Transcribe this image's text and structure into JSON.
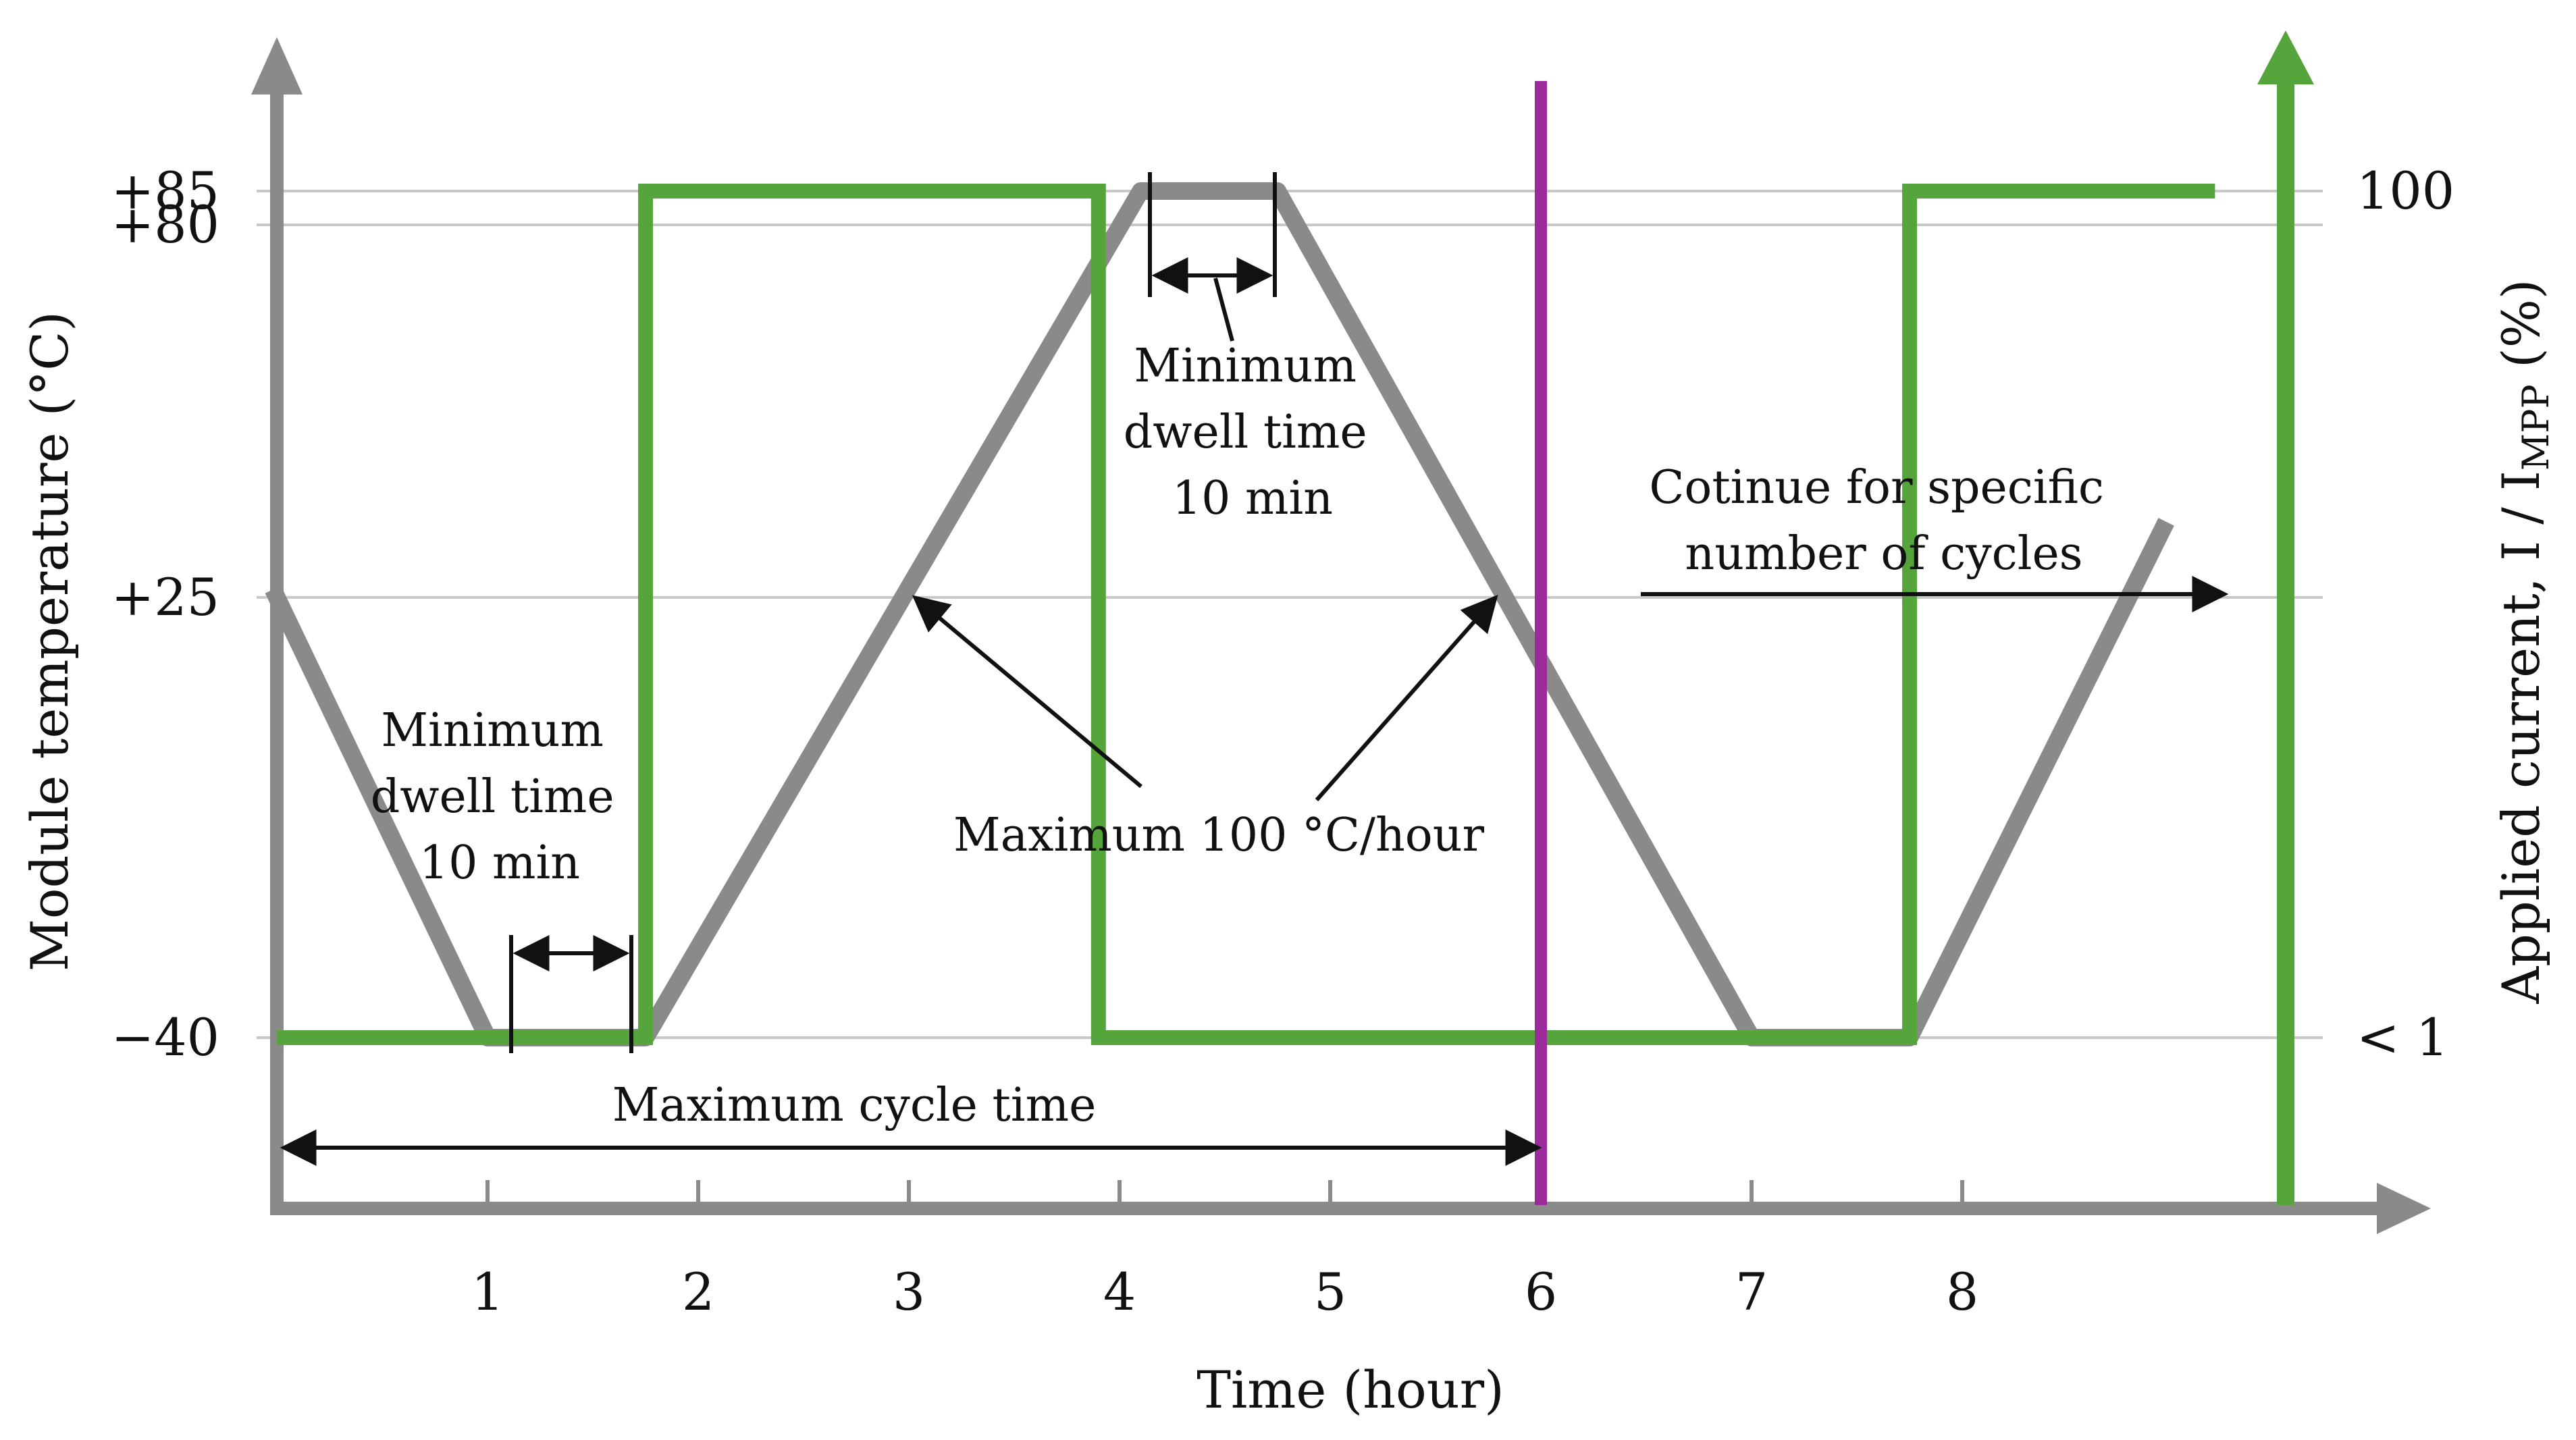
{
  "chart_data": {
    "type": "line",
    "title": "",
    "xlabel": "Time (hour)",
    "ylabel_left": "Module temperature (°C)",
    "ylabel_right": "Applied current, I / I",
    "ylabel_right_subscript": "MPP",
    "ylabel_right_suffix": " (%)",
    "xlim": [
      0,
      10.3
    ],
    "ylim_left": [
      -70,
      110
    ],
    "x_ticks": [
      1,
      2,
      3,
      4,
      5,
      6,
      7,
      8
    ],
    "x_tick_labels": [
      "1",
      "2",
      "3",
      "4",
      "5",
      "6",
      "7",
      "8"
    ],
    "y_left_ticks": [
      -40,
      25,
      80,
      85
    ],
    "y_left_tick_labels": [
      "−40",
      "+25",
      "+80",
      "+85"
    ],
    "y_right_ticks": [
      {
        "value": 100,
        "label": "100",
        "at_temperature": 85
      },
      {
        "value": 1,
        "label": "< 1",
        "at_temperature": -40
      }
    ],
    "grid_horizontal": true,
    "series": [
      {
        "name": "Module temperature",
        "color": "#8a8a8a",
        "axis": "left",
        "x": [
          0,
          1,
          1.75,
          4.1,
          4.75,
          7,
          7.75,
          8.95
        ],
        "y": [
          25,
          -40,
          -40,
          85,
          85,
          -40,
          -40,
          35
        ]
      },
      {
        "name": "Applied current",
        "color": "#55a53c",
        "axis": "right",
        "x": [
          0,
          1.75,
          1.75,
          3.9,
          3.9,
          7.75,
          7.75,
          9.2
        ],
        "y": [
          1,
          1,
          100,
          100,
          1,
          1,
          100,
          100
        ]
      }
    ],
    "vertical_marker": {
      "x": 6,
      "color": "#9b2a9b"
    },
    "annotations": [
      {
        "lines": [
          "Minimum",
          "dwell time",
          "10 min"
        ],
        "target": "dwell at -40 °C, hour 1.1–1.7"
      },
      {
        "lines": [
          "Minimum",
          "dwell time",
          "10 min"
        ],
        "target": "dwell at +85 °C, hour 4.1–4.75"
      },
      {
        "lines": [
          "Maximum 100 °C/hour"
        ],
        "target": "ramp rates"
      },
      {
        "lines": [
          "Maximum cycle time"
        ],
        "target": "hour 0–6"
      },
      {
        "lines": [
          "Cotinue for specific",
          "number of cycles"
        ],
        "target": "continuation arrow"
      }
    ]
  },
  "colors": {
    "axis": "#8a8a8a",
    "temperature": "#8a8a8a",
    "current": "#55a53c",
    "marker": "#9b2a9b",
    "grid": "#c8c8c8",
    "text": "#111111"
  }
}
